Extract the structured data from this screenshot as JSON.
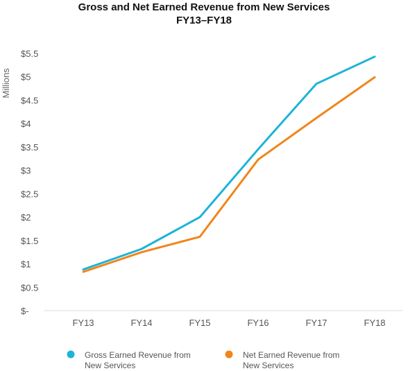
{
  "chart_data": {
    "type": "line",
    "title": "Gross and Net Earned Revenue from New Services",
    "subtitle": "FY13–FY18",
    "ylabel": "Millions",
    "xlabel": "",
    "categories": [
      "FY13",
      "FY14",
      "FY15",
      "FY16",
      "FY17",
      "FY18"
    ],
    "ylim": [
      0,
      5.5
    ],
    "yticks": [
      0,
      0.5,
      1,
      1.5,
      2,
      2.5,
      3,
      3.5,
      4,
      4.5,
      5,
      5.5
    ],
    "ytick_labels": [
      "$-",
      "$0.5",
      "$1",
      "$1.5",
      "$2",
      "$2.5",
      "$3",
      "$3.5",
      "$4",
      "$4.5",
      "$5",
      "$5.5"
    ],
    "grid": false,
    "legend_position": "bottom",
    "series": [
      {
        "name": "Gross Earned Revenue from New Services",
        "legend_lines": [
          "Gross Earned Revenue from",
          "New Services"
        ],
        "color": "#1cb3d8",
        "values": [
          0.88,
          1.32,
          2.0,
          3.45,
          4.85,
          5.43
        ]
      },
      {
        "name": "Net Earned Revenue from New Services",
        "legend_lines": [
          "Net Earned Revenue from",
          "New Services"
        ],
        "color": "#f0851a",
        "values": [
          0.83,
          1.25,
          1.58,
          3.23,
          4.12,
          4.99
        ]
      }
    ]
  }
}
